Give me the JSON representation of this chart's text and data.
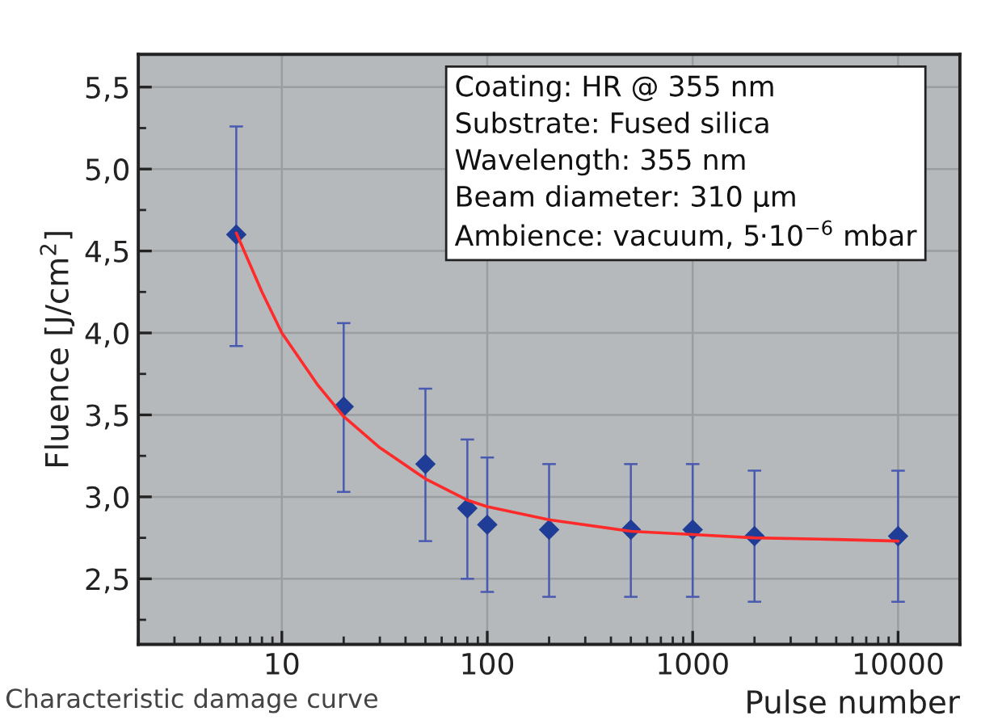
{
  "chart_data": {
    "type": "scatter",
    "xlabel": "Pulse number",
    "ylabel": "Fluence [J/cm$^{2}$]",
    "log": "x",
    "grid": true,
    "xlim": [
      2,
      20000
    ],
    "xticks": [
      10,
      100,
      1000,
      10000
    ],
    "ylim": [
      2.1,
      5.7
    ],
    "yticks": [
      {
        "value": 2.5,
        "label": "2,5"
      },
      {
        "value": 3.0,
        "label": "3,0"
      },
      {
        "value": 3.5,
        "label": "3,5"
      },
      {
        "value": 4.0,
        "label": "4,0"
      },
      {
        "value": 4.5,
        "label": "4,5"
      },
      {
        "value": 5.0,
        "label": "5,0"
      },
      {
        "value": 5.5,
        "label": "5,5"
      }
    ],
    "series": [
      {
        "marker": "diamond",
        "color": "#1f3c96",
        "x": [
          6,
          20,
          50,
          80,
          100,
          200,
          500,
          1000,
          2000,
          10000
        ],
        "values": [
          4.6,
          3.55,
          3.2,
          2.93,
          2.83,
          2.8,
          2.8,
          2.8,
          2.76,
          2.76
        ],
        "errors": [
          [
            3.92,
            5.26
          ],
          [
            3.03,
            4.06
          ],
          [
            2.73,
            3.66
          ],
          [
            2.5,
            3.35
          ],
          [
            2.42,
            3.24
          ],
          [
            2.39,
            3.2
          ],
          [
            2.39,
            3.2
          ],
          [
            2.39,
            3.2
          ],
          [
            2.36,
            3.16
          ],
          [
            2.36,
            3.16
          ]
        ]
      },
      {
        "type": "line",
        "color": "#ff2a2a",
        "x": [
          6,
          8,
          10,
          15,
          20,
          30,
          50,
          80,
          100,
          200,
          500,
          1000,
          2000,
          5000,
          10000
        ],
        "values": [
          4.61,
          4.25,
          4.0,
          3.68,
          3.49,
          3.3,
          3.11,
          2.98,
          2.94,
          2.86,
          2.79,
          2.77,
          2.75,
          2.74,
          2.73
        ]
      }
    ],
    "annotations": [
      "Coating: HR @ 355 nm",
      "Substrate: Fused silica",
      "Wavelength: 355 nm",
      "Beam diameter: 310 µm",
      "Ambience: vacuum, 5·10$^{−6}$ mbar",
      "Characteristic damage curve"
    ]
  }
}
